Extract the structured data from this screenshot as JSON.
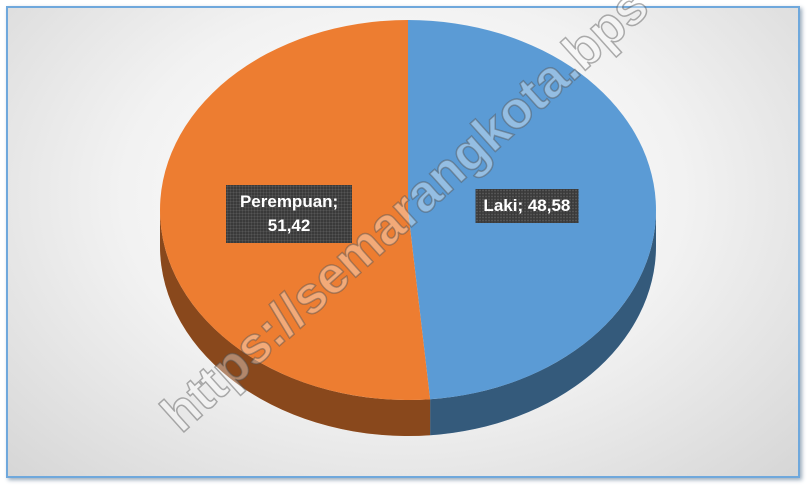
{
  "chart_data": {
    "type": "pie3d",
    "categories": [
      "Laki",
      "Perempuan"
    ],
    "values": [
      48.58,
      51.42
    ],
    "value_labels": [
      "Laki; 48,58",
      "Perempuan; 51,42"
    ],
    "colors": [
      "#5b9bd5",
      "#ed7d31"
    ],
    "watermark": "https://semarangkota.bps"
  }
}
